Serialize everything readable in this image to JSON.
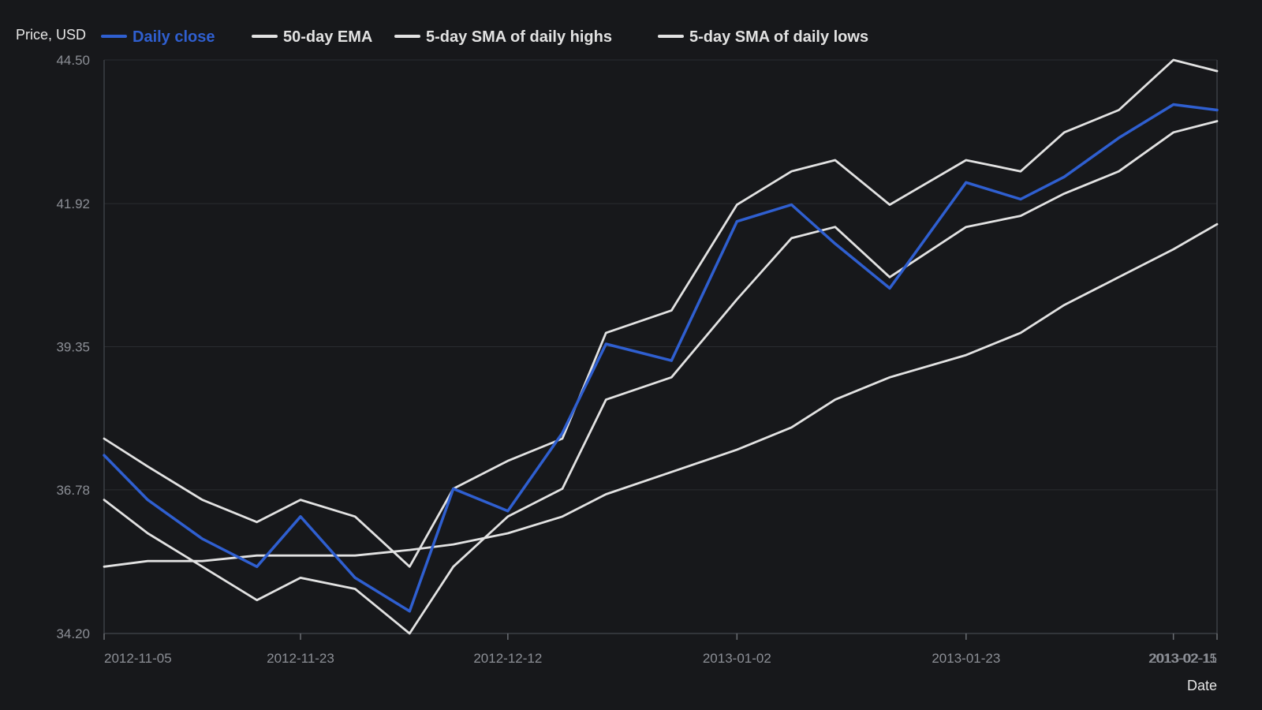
{
  "colors": {
    "background": "#17181b",
    "primary_series": "#2f5fd0",
    "secondary_series": "#e2e2e2"
  },
  "chart_data": {
    "type": "line",
    "title": "",
    "ylabel": "Price, USD",
    "xlabel": "Date",
    "ylim": [
      34.2,
      44.5
    ],
    "y_ticks": [
      "34.20",
      "36.78",
      "39.35",
      "41.92",
      "44.50"
    ],
    "x_ticks": [
      {
        "date": "2012-11-05",
        "label": "2012-11-05"
      },
      {
        "date": "2012-11-23",
        "label": "2012-11-23"
      },
      {
        "date": "2012-12-12",
        "label": "2012-12-12"
      },
      {
        "date": "2013-01-02",
        "label": "2013-01-02"
      },
      {
        "date": "2013-01-23",
        "label": "2013-01-23"
      },
      {
        "date": "2013-02-11",
        "label": "2013-02-11"
      },
      {
        "date": "2013-02-15",
        "label": "2013-02-15"
      }
    ],
    "grid": true,
    "legend_position": "top-left",
    "x": [
      "2012-11-05",
      "2012-11-09",
      "2012-11-14",
      "2012-11-19",
      "2012-11-23",
      "2012-11-28",
      "2012-12-03",
      "2012-12-07",
      "2012-12-12",
      "2012-12-17",
      "2012-12-21",
      "2012-12-27",
      "2013-01-02",
      "2013-01-07",
      "2013-01-11",
      "2013-01-16",
      "2013-01-23",
      "2013-01-28",
      "2013-02-01",
      "2013-02-06",
      "2013-02-11",
      "2013-02-15"
    ],
    "series": [
      {
        "name": "Daily close",
        "color": "#2f5fd0",
        "values": [
          37.4,
          36.6,
          35.9,
          35.4,
          36.3,
          35.2,
          34.6,
          36.8,
          36.4,
          37.8,
          39.4,
          39.1,
          41.6,
          41.9,
          41.2,
          40.4,
          42.3,
          42.0,
          42.4,
          43.1,
          43.7,
          43.6
        ]
      },
      {
        "name": "50-day EMA",
        "color": "#e2e2e2",
        "values": [
          35.4,
          35.5,
          35.5,
          35.6,
          35.6,
          35.6,
          35.7,
          35.8,
          36.0,
          36.3,
          36.7,
          37.1,
          37.5,
          37.9,
          38.4,
          38.8,
          39.2,
          39.6,
          40.1,
          40.6,
          41.1,
          41.55
        ]
      },
      {
        "name": "5-day SMA of daily highs",
        "color": "#e2e2e2",
        "values": [
          37.7,
          37.2,
          36.6,
          36.2,
          36.6,
          36.3,
          35.4,
          36.8,
          37.3,
          37.7,
          39.6,
          40.0,
          41.9,
          42.5,
          42.7,
          41.9,
          42.7,
          42.5,
          43.2,
          43.6,
          44.5,
          44.3
        ]
      },
      {
        "name": "5-day SMA of daily lows",
        "color": "#e2e2e2",
        "values": [
          36.6,
          36.0,
          35.4,
          34.8,
          35.2,
          35.0,
          34.2,
          35.4,
          36.3,
          36.8,
          38.4,
          38.8,
          40.2,
          41.3,
          41.5,
          40.6,
          41.5,
          41.7,
          42.1,
          42.5,
          43.2,
          43.4
        ]
      }
    ]
  }
}
